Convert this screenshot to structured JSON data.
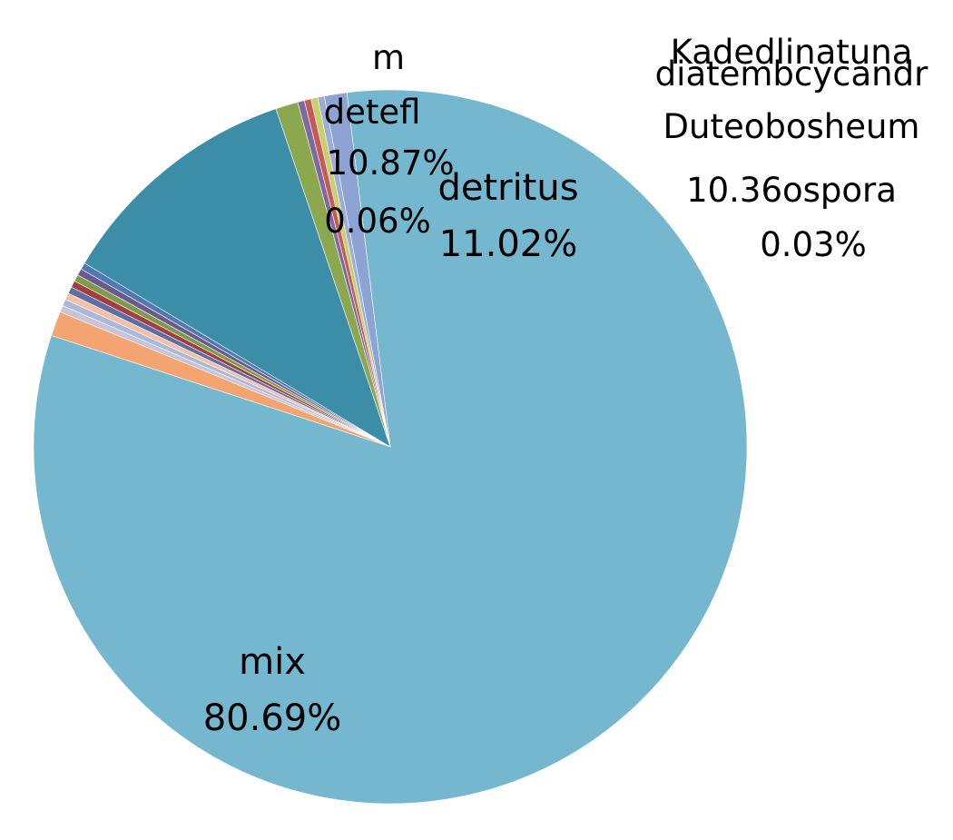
{
  "chart_data": {
    "type": "pie",
    "slices": [
      {
        "label": "mix",
        "value": 80.69,
        "value_label": "80.69%",
        "color": "#75B7CF"
      },
      {
        "label": "",
        "value": 1.1,
        "value_label": "",
        "color": "#F4A470"
      },
      {
        "label": "",
        "value": 0.3,
        "value_label": "",
        "color": "#C7C4D9"
      },
      {
        "label": "",
        "value": 0.3,
        "value_label": "",
        "color": "#A9B9D9"
      },
      {
        "label": "",
        "value": 0.3,
        "value_label": "",
        "color": "#F6BFA6"
      },
      {
        "label": "",
        "value": 0.3,
        "value_label": "",
        "color": "#5B6FA6"
      },
      {
        "label": "",
        "value": 0.3,
        "value_label": "",
        "color": "#A2403F"
      },
      {
        "label": "",
        "value": 0.3,
        "value_label": "",
        "color": "#7D9B4A"
      },
      {
        "label": "",
        "value": 0.3,
        "value_label": "",
        "color": "#6C5A8E"
      },
      {
        "label": "",
        "value": 0.3,
        "value_label": "",
        "color": "#4F79B0"
      },
      {
        "label": "detritus",
        "value": 11.02,
        "value_label": "11.02%",
        "color": "#3C8DA8"
      },
      {
        "label": "",
        "value": 1.0,
        "value_label": "",
        "color": "#8BA84F"
      },
      {
        "label": "",
        "value": 0.3,
        "value_label": "",
        "color": "#7E6AA0"
      },
      {
        "label": "",
        "value": 0.3,
        "value_label": "",
        "color": "#C55A56"
      },
      {
        "label": "",
        "value": 0.3,
        "value_label": "",
        "color": "#C9CF6A"
      },
      {
        "label": "",
        "value": 0.3,
        "value_label": "",
        "color": "#9AAED8"
      },
      {
        "label": "",
        "value": 1.0,
        "value_label": "",
        "color": "#8CA3D3"
      }
    ],
    "overlap_labels": [
      {
        "text": "m",
        "anchor": "top"
      },
      {
        "text": "Kadedlinatuna",
        "anchor": "right"
      },
      {
        "text": "diatembcycandr",
        "anchor": "right"
      },
      {
        "text": "Duteobosheum",
        "anchor": "right"
      },
      {
        "text": "10.36ospora",
        "anchor": "right"
      },
      {
        "text": "0.03%",
        "anchor": "right"
      },
      {
        "text": "10.87%",
        "anchor": "top"
      },
      {
        "text": "0.06%",
        "anchor": "top"
      },
      {
        "text": "detefl",
        "anchor": "top"
      }
    ],
    "legend": "none"
  }
}
